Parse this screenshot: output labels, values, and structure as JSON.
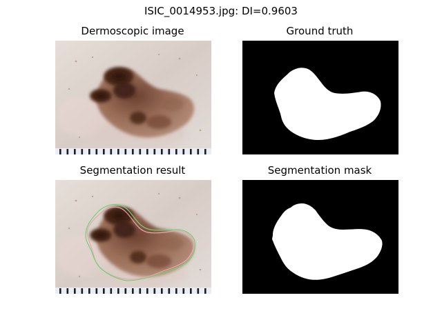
{
  "figure": {
    "title": "ISIC_0014953.jpg: DI=0.9603"
  },
  "panels": {
    "dermoscopic": {
      "title": "Dermoscopic image"
    },
    "ground_truth": {
      "title": "Ground truth"
    },
    "segmentation_result": {
      "title": "Segmentation result"
    },
    "segmentation_mask": {
      "title": "Segmentation mask"
    }
  },
  "colors": {
    "skin": "#d9cfc9",
    "lesion_dark": "#3a1f12",
    "lesion_light": "#a57a64",
    "mask_background": "#000000",
    "mask_foreground": "#ffffff",
    "contour_prediction": "#6fd36f",
    "contour_truth": "#e8a6b0"
  }
}
